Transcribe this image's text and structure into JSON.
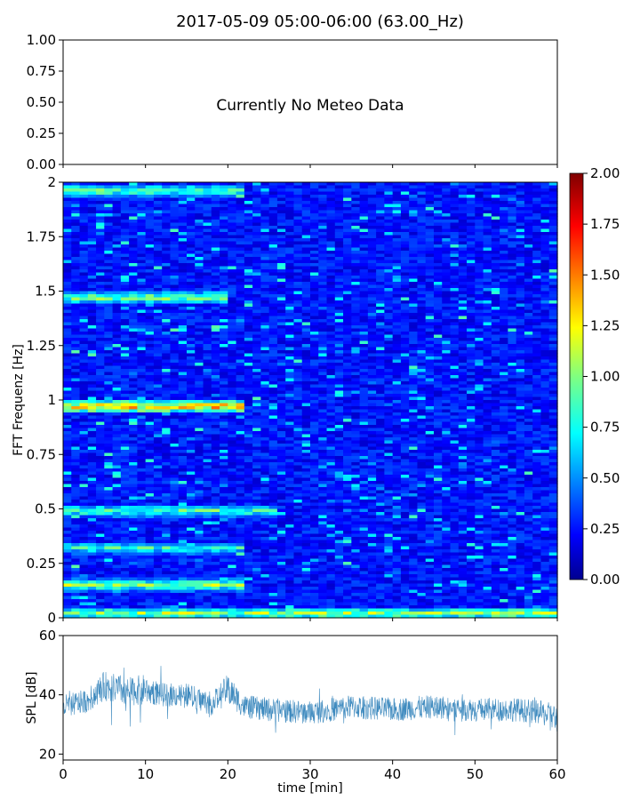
{
  "figure": {
    "title": "2017-05-09 05:00-06:00 (63.00_Hz)"
  },
  "chart_data": [
    {
      "type": "text",
      "panel": "meteo",
      "annotation": "Currently No Meteo Data",
      "ylim": [
        0,
        1
      ],
      "yticks": [
        "0.00",
        "0.25",
        "0.50",
        "0.75",
        "1.00"
      ]
    },
    {
      "type": "heatmap",
      "panel": "spectrogram",
      "ylabel": "FFT Frequenz [Hz]",
      "xlim": [
        0,
        60
      ],
      "ylim": [
        0,
        2
      ],
      "yticks": [
        "0",
        "0.25",
        "0.5",
        "0.75",
        "1",
        "1.25",
        "1.5",
        "1.75",
        "2"
      ],
      "colormap": "jet",
      "color_range": [
        0,
        2
      ],
      "colorbar_ticks": [
        "0.00",
        "0.25",
        "0.50",
        "0.75",
        "1.00",
        "1.25",
        "1.50",
        "1.75",
        "2.00"
      ],
      "background_level": 0.28,
      "bands": [
        {
          "freq": 0.02,
          "level": 1.2,
          "time_range": [
            0,
            60
          ]
        },
        {
          "freq": 0.15,
          "level": 1.15,
          "time_range": [
            0,
            22
          ]
        },
        {
          "freq": 0.32,
          "level": 0.95,
          "time_range": [
            0,
            22
          ]
        },
        {
          "freq": 0.49,
          "level": 1.05,
          "time_range": [
            0,
            26
          ]
        },
        {
          "freq": 0.97,
          "level": 1.6,
          "time_range": [
            0,
            22
          ]
        },
        {
          "freq": 1.47,
          "level": 1.15,
          "time_range": [
            0,
            20
          ]
        },
        {
          "freq": 1.96,
          "level": 1.1,
          "time_range": [
            0,
            22
          ]
        }
      ]
    },
    {
      "type": "line",
      "panel": "spl",
      "xlabel": "time [min]",
      "ylabel": "SPL [dB]",
      "xlim": [
        0,
        60
      ],
      "ylim": [
        18,
        60
      ],
      "xticks": [
        "0",
        "10",
        "20",
        "30",
        "40",
        "50",
        "60"
      ],
      "yticks": [
        "20",
        "40",
        "60"
      ],
      "color": "#1f77b4",
      "x": [
        0,
        3,
        5,
        8,
        10,
        12,
        15,
        18,
        20,
        22,
        25,
        30,
        35,
        40,
        45,
        50,
        55,
        58,
        60
      ],
      "mean": [
        36,
        38,
        43,
        41,
        42,
        40,
        40,
        37,
        42,
        36,
        35,
        34,
        36,
        35,
        36,
        35,
        35,
        34,
        32
      ],
      "spread": [
        4,
        4,
        5,
        5,
        5,
        4,
        4,
        4,
        5,
        4,
        4,
        4,
        4,
        4,
        4,
        4,
        4,
        4,
        5
      ]
    }
  ]
}
